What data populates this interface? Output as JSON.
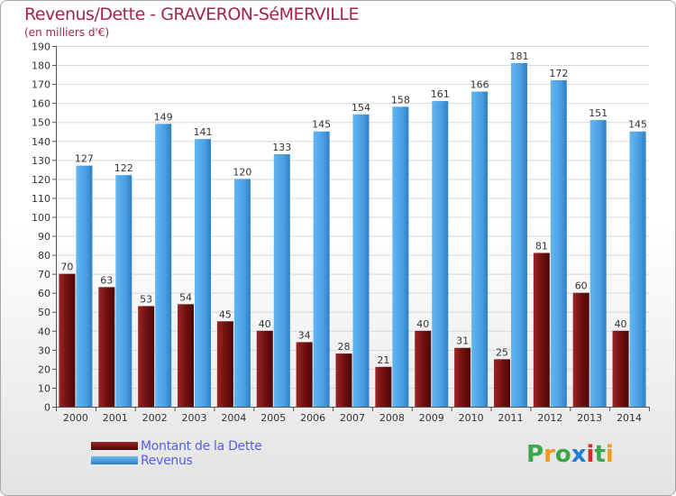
{
  "title": "Revenus/Dette - GRAVERON-SéMERVILLE",
  "subtitle": "(en milliers d'€)",
  "logo": {
    "letters": [
      "P",
      "r",
      "o",
      "x",
      "i",
      "t",
      "i"
    ],
    "colors": [
      "#3aa84a",
      "#f09a1e",
      "#3aa84a",
      "#1e7fd6",
      "#d92a2a",
      "#3aa84a",
      "#f09a1e"
    ]
  },
  "legend": [
    {
      "label": "Montant de la Dette",
      "color": "#7a1414"
    },
    {
      "label": "Revenus",
      "color": "#4aa3e8"
    }
  ],
  "chart_data": {
    "type": "bar",
    "categories": [
      "2000",
      "2001",
      "2002",
      "2003",
      "2004",
      "2005",
      "2006",
      "2007",
      "2008",
      "2009",
      "2010",
      "2011",
      "2012",
      "2013",
      "2014"
    ],
    "series": [
      {
        "name": "Montant de la Dette",
        "color": "#7a1414",
        "values": [
          70,
          63,
          53,
          54,
          45,
          40,
          34,
          28,
          21,
          40,
          31,
          25,
          81,
          60,
          40
        ]
      },
      {
        "name": "Revenus",
        "color": "#4aa3e8",
        "values": [
          127,
          122,
          149,
          141,
          120,
          133,
          145,
          154,
          158,
          161,
          166,
          181,
          172,
          151,
          145
        ]
      }
    ],
    "ylim": [
      0,
      190
    ],
    "yticks": [
      "0",
      "10",
      "20",
      "30",
      "40",
      "50",
      "60",
      "70",
      "80",
      "90",
      "100",
      "110",
      "120",
      "130",
      "140",
      "150",
      "160",
      "170",
      "180",
      "190"
    ],
    "grid": true
  }
}
